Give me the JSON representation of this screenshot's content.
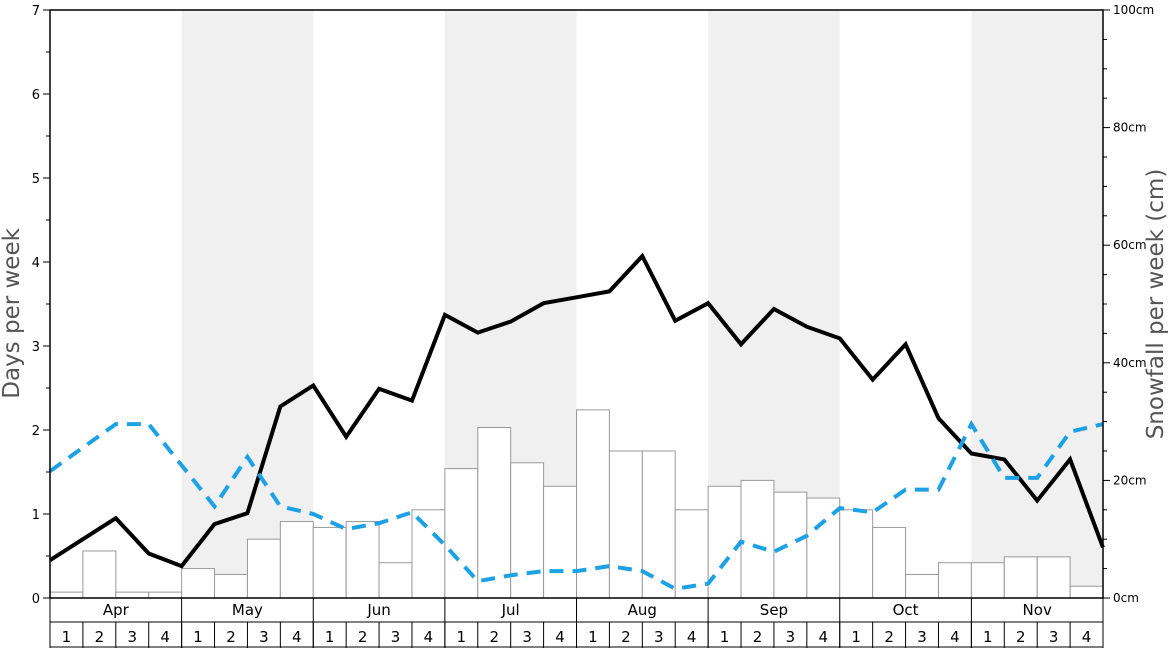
{
  "chart_data": {
    "type": "bar",
    "ylabel": "Days per week",
    "y2label": "Snowfall per week (cm)",
    "ylim": [
      0,
      7
    ],
    "y2lim": [
      0,
      100
    ],
    "y_ticks": [
      "0",
      "1",
      "2",
      "3",
      "4",
      "5",
      "6",
      "7"
    ],
    "y2_ticks": [
      "0cm",
      "20cm",
      "40cm",
      "60cm",
      "80cm",
      "100cm"
    ],
    "months": [
      "Apr",
      "May",
      "Jun",
      "Jul",
      "Aug",
      "Sep",
      "Oct",
      "Nov"
    ],
    "weeks": [
      "1",
      "2",
      "3",
      "4"
    ],
    "bar_color": "#ffffff",
    "bar_edge_color": "#999999",
    "shade_color": "#f0f0f0",
    "series": [
      {
        "kind": "bar",
        "axis": "right",
        "color": "#ffffff",
        "values": [
          1,
          8,
          1,
          1,
          5,
          4,
          10,
          13,
          12,
          13,
          6,
          15,
          22,
          29,
          23,
          19,
          32,
          25,
          25,
          15,
          19,
          20,
          18,
          17,
          15,
          12,
          4,
          6,
          6,
          7,
          7,
          2
        ]
      },
      {
        "kind": "line",
        "axis": "left",
        "color": "#000000",
        "style": "solid",
        "values": [
          0.45,
          0.7,
          0.95,
          0.53,
          0.38,
          0.88,
          1.01,
          2.28,
          2.53,
          1.92,
          2.49,
          2.35,
          3.37,
          3.16,
          3.29,
          3.51,
          3.58,
          3.65,
          4.07,
          3.3,
          3.51,
          3.02,
          3.44,
          3.23,
          3.09,
          2.6,
          3.02,
          2.14,
          1.72,
          1.65,
          1.16,
          1.65,
          0.6
        ]
      },
      {
        "kind": "line",
        "axis": "left",
        "color": "#1da1e6",
        "style": "dashed",
        "values": [
          1.51,
          1.79,
          2.07,
          2.07,
          1.58,
          1.09,
          1.68,
          1.09,
          1.0,
          0.82,
          0.89,
          1.02,
          0.63,
          0.2,
          0.27,
          0.32,
          0.32,
          0.38,
          0.32,
          0.11,
          0.17,
          0.67,
          0.55,
          0.74,
          1.07,
          1.02,
          1.29,
          1.29,
          2.07,
          1.43,
          1.43,
          1.98,
          2.07
        ]
      }
    ]
  }
}
